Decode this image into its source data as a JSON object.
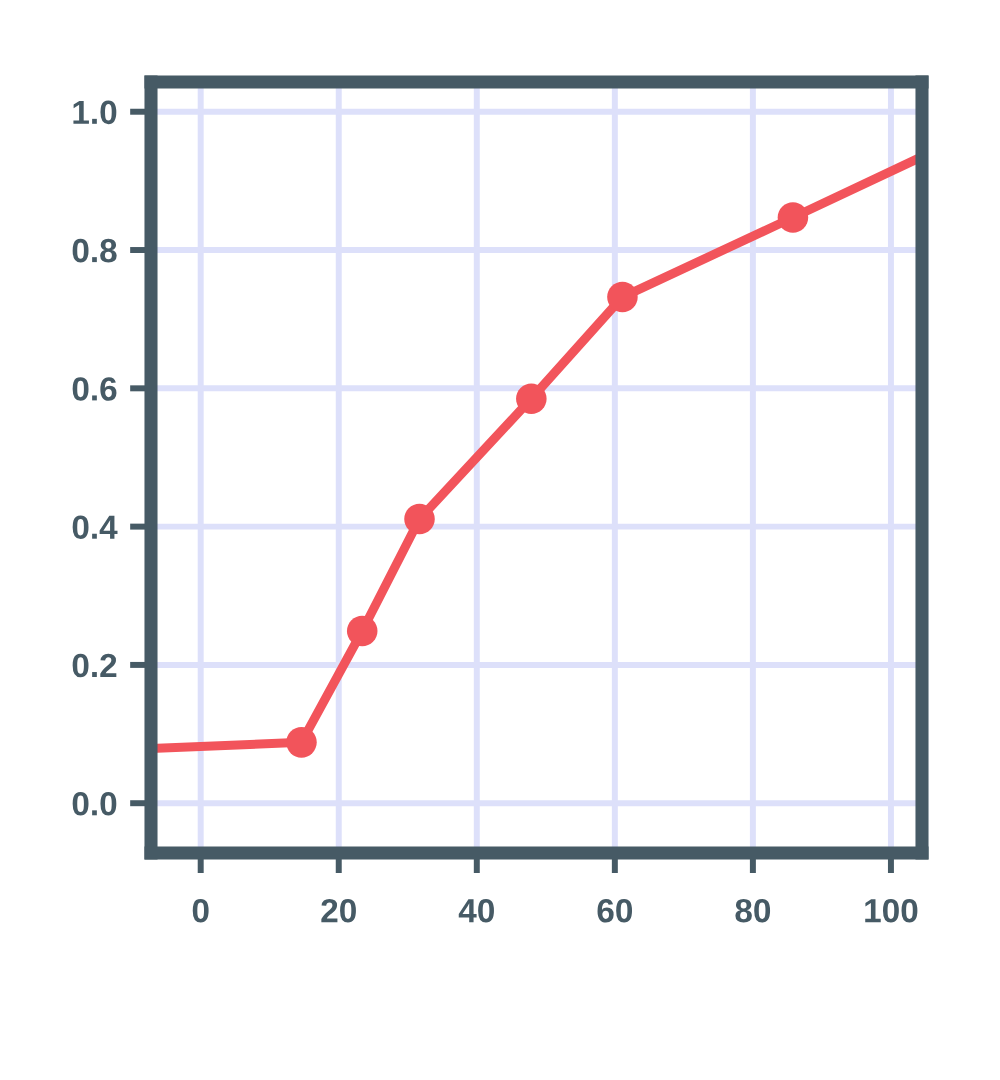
{
  "chart_data": {
    "type": "line",
    "xlim": [
      -7.2,
      104.5
    ],
    "ylim": [
      -0.072,
      1.043
    ],
    "xticks": [
      0,
      20,
      40,
      60,
      80,
      100
    ],
    "yticks": [
      {
        "value": 0,
        "label": "0.0"
      },
      0.2,
      0.4,
      0.6,
      0.8,
      {
        "value": 1,
        "label": "1.0"
      }
    ],
    "grid": true,
    "series": [
      {
        "marker": "none",
        "line_style": "solid",
        "color": "#f2545b",
        "x": [
          -7.2,
          14.6,
          23.4,
          31.7,
          47.9,
          61.1,
          85.8,
          104.5
        ],
        "values": [
          0.079,
          0.088,
          0.249,
          0.411,
          0.585,
          0.732,
          0.847,
          0.935
        ]
      },
      {
        "type": "scatter",
        "marker": "circle",
        "color": "#f2545b",
        "x": [
          14.6,
          23.4,
          31.7,
          47.9,
          61.1,
          85.8
        ],
        "values": [
          0.088,
          0.249,
          0.411,
          0.585,
          0.732,
          0.847
        ]
      }
    ]
  }
}
